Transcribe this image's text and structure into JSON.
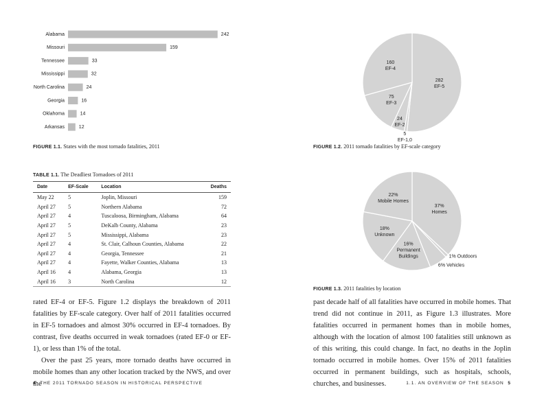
{
  "chart_data": [
    {
      "type": "bar",
      "label": "FIGURE 1.1.",
      "title": "States with the most tornado fatalities, 2011",
      "categories": [
        "Alabama",
        "Missouri",
        "Tennessee",
        "Mississippi",
        "North Carolina",
        "Georgia",
        "Oklahoma",
        "Arkansas"
      ],
      "values": [
        242,
        159,
        33,
        32,
        24,
        16,
        14,
        12
      ],
      "color": "#bdbdbd"
    },
    {
      "type": "pie",
      "label": "FIGURE 1.2.",
      "title": "2011 tornado fatalities by EF-scale category",
      "categories": [
        "EF-5",
        "EF-1,0",
        "EF-2",
        "EF-3",
        "EF-4"
      ],
      "values": [
        282,
        5,
        24,
        75,
        160
      ],
      "color": "#d4d4d4"
    },
    {
      "type": "pie",
      "label": "FIGURE 1.3.",
      "title": "2011 fatalities by location",
      "categories": [
        "Homes",
        "Outdoors",
        "Vehicles",
        "Permanent Buildings",
        "Unknown",
        "Mobile Homes"
      ],
      "values": [
        37,
        1,
        6,
        16,
        18,
        22
      ],
      "value_labels": [
        "37%",
        "1%",
        "6%",
        "16%",
        "18%",
        "22%"
      ],
      "color": "#d4d4d4"
    }
  ],
  "table": {
    "label": "TABLE 1.1.",
    "title": "The Deadliest Tornadoes of 2011",
    "columns": [
      "Date",
      "EF-Scale",
      "Location",
      "Deaths"
    ],
    "rows": [
      [
        "May 22",
        5,
        "Joplin, Missouri",
        159
      ],
      [
        "April 27",
        5,
        "Northern Alabama",
        72
      ],
      [
        "April 27",
        4,
        "Tuscaloosa, Birmingham, Alabama",
        64
      ],
      [
        "April 27",
        5,
        "DeKalb County, Alabama",
        23
      ],
      [
        "April 27",
        5,
        "Mississippi, Alabama",
        23
      ],
      [
        "April 27",
        4,
        "St. Clair, Calhoun Counties, Alabama",
        22
      ],
      [
        "April 27",
        4,
        "Georgia, Tennessee",
        21
      ],
      [
        "April 27",
        4,
        "Fayette, Walker Counties, Alabama",
        13
      ],
      [
        "April 16",
        4,
        "Alabama, Georgia",
        13
      ],
      [
        "April 16",
        3,
        "North Carolina",
        12
      ]
    ]
  },
  "body": {
    "left": [
      "rated EF-4 or EF-5. Figure 1.2 displays the breakdown of 2011 fatalities by EF-scale category. Over half of 2011 fatalities occurred in EF-5 tornadoes and almost 30% occurred in EF-4 tornadoes. By contrast, five deaths occurred in weak tornadoes (rated EF-0 or EF-1), or less than 1% of the total.",
      "Over the past 25 years, more tornado deaths have occurred in mobile homes than any other location tracked by the NWS, and over the"
    ],
    "right": [
      "past decade half of all fatalities have occurred in mobile homes. That trend did not continue in 2011, as Figure 1.3 illustrates. More fatalities occurred in permanent homes than in mobile homes, although with the location of almost 100 fatalities still unknown as of this writing, this could change. In fact, no deaths in the Joplin tornado occurred in mobile homes. Over 15% of 2011 fatalities occurred in permanent buildings, such as hospitals, schools, churches, and businesses."
    ]
  },
  "footer": {
    "left_page": 4,
    "left_running_head": "THE 2011 TORNADO SEASON IN HISTORICAL PERSPECTIVE",
    "right_running_head": "1.1. AN OVERVIEW OF THE SEASON",
    "right_page": 5
  }
}
